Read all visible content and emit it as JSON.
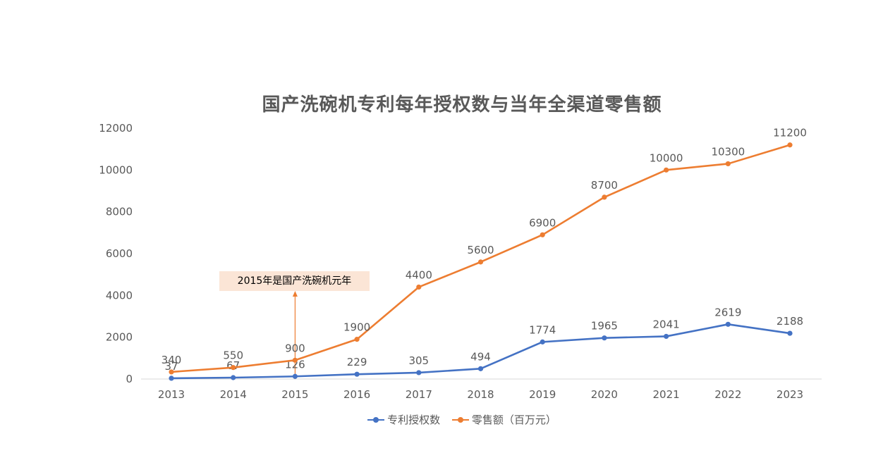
{
  "chart_data": {
    "type": "line",
    "title": "国产洗碗机专利每年授权数与当年全渠道零售额",
    "categories": [
      "2013",
      "2014",
      "2015",
      "2016",
      "2017",
      "2018",
      "2019",
      "2020",
      "2021",
      "2022",
      "2023"
    ],
    "ylim": [
      0,
      12000
    ],
    "yticks": [
      "0",
      "2000",
      "4000",
      "6000",
      "8000",
      "10000",
      "12000"
    ],
    "grid": false,
    "legend_position": "bottom",
    "series": [
      {
        "name": "专利授权数",
        "color": "#4472c4",
        "values": [
          37,
          67,
          126,
          229,
          305,
          494,
          1774,
          1965,
          2041,
          2619,
          2188
        ]
      },
      {
        "name": "零售额（百万元）",
        "color": "#ed7d31",
        "values": [
          340,
          550,
          900,
          1900,
          4400,
          5600,
          6900,
          8700,
          10000,
          10300,
          11200
        ]
      }
    ],
    "annotation": {
      "text": "2015年是国产洗碗机元年",
      "category": "2015",
      "color": "#ed7d31"
    }
  }
}
